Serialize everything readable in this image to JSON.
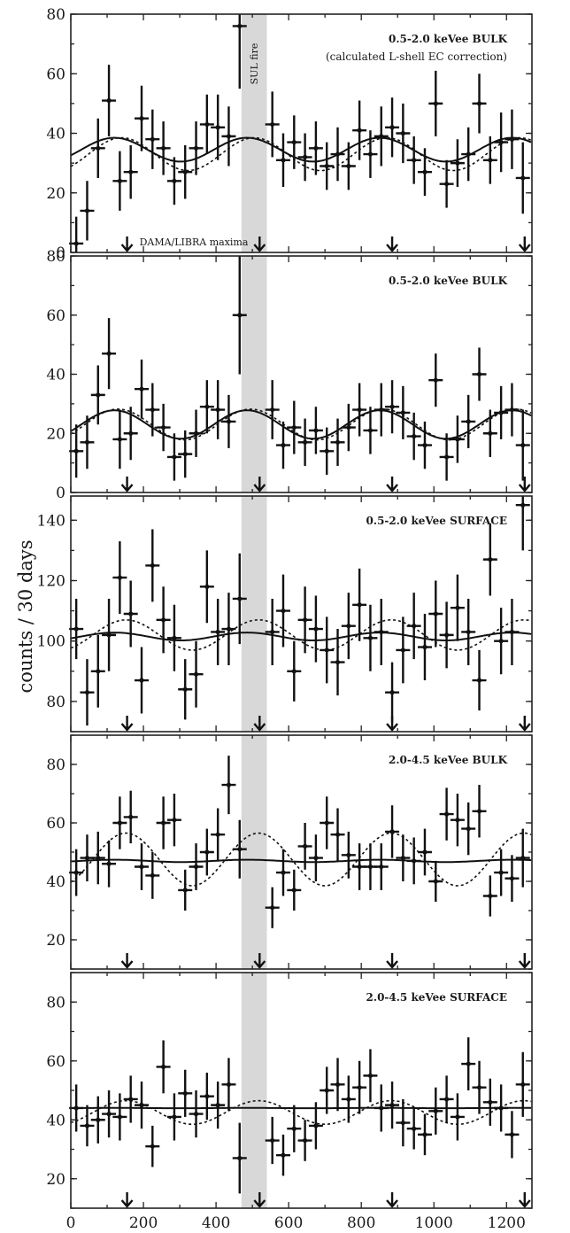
{
  "figure": {
    "ylabel": "counts / 30 days",
    "shared_x_ticks": [
      "0",
      "200",
      "400",
      "600",
      "800",
      "1000",
      "1200"
    ],
    "band_label": "SUL fire",
    "maxima_label": "DAMA/LIBRA maxima"
  },
  "chart_data": [
    {
      "type": "scatter",
      "title": "0.5-2.0 keVee BULK",
      "subtitle": "(calculated L-shell EC correction)",
      "ylim": [
        0,
        80
      ],
      "yticks": [
        0,
        20,
        40,
        60,
        80
      ],
      "xlim": [
        0,
        1270
      ],
      "band": [
        470,
        540
      ],
      "arrows_x": [
        155,
        520,
        885,
        1250
      ],
      "x": [
        15,
        45,
        75,
        105,
        135,
        165,
        195,
        225,
        255,
        285,
        315,
        345,
        375,
        405,
        435,
        465,
        555,
        585,
        615,
        645,
        675,
        705,
        735,
        765,
        795,
        825,
        855,
        885,
        915,
        945,
        975,
        1005,
        1035,
        1065,
        1095,
        1125,
        1155,
        1185,
        1215,
        1245
      ],
      "y": [
        3,
        14,
        35,
        51,
        24,
        27,
        45,
        38,
        35,
        24,
        27,
        35,
        43,
        42,
        39,
        76,
        43,
        31,
        37,
        32,
        35,
        29,
        33,
        29,
        41,
        33,
        39,
        42,
        40,
        31,
        27,
        50,
        23,
        30,
        33,
        50,
        31,
        37,
        38,
        25
      ],
      "yerr": [
        9,
        10,
        10,
        12,
        10,
        9,
        11,
        10,
        9,
        8,
        9,
        9,
        10,
        11,
        10,
        21,
        11,
        9,
        9,
        8,
        9,
        8,
        9,
        8,
        10,
        8,
        10,
        10,
        10,
        8,
        8,
        11,
        8,
        8,
        9,
        10,
        8,
        10,
        10,
        12
      ],
      "fit_solid": {
        "mean": 34.5,
        "amplitude": 4,
        "phase_day": 120
      },
      "fit_dashed": {
        "mean": 33,
        "amplitude": 5.5,
        "phase_day": 140
      }
    },
    {
      "type": "scatter",
      "title": "0.5-2.0 keVee BULK",
      "ylim": [
        0,
        80
      ],
      "yticks": [
        0,
        20,
        40,
        60,
        80
      ],
      "xlim": [
        0,
        1270
      ],
      "band": [
        470,
        540
      ],
      "arrows_x": [
        155,
        520,
        885,
        1250
      ],
      "x": [
        15,
        45,
        75,
        105,
        135,
        165,
        195,
        225,
        255,
        285,
        315,
        345,
        375,
        405,
        435,
        465,
        555,
        585,
        615,
        645,
        675,
        705,
        735,
        765,
        795,
        825,
        855,
        885,
        915,
        945,
        975,
        1005,
        1035,
        1065,
        1095,
        1125,
        1155,
        1185,
        1215,
        1245
      ],
      "y": [
        14,
        17,
        33,
        47,
        18,
        20,
        35,
        28,
        22,
        12,
        13,
        20,
        29,
        28,
        24,
        60,
        28,
        16,
        22,
        17,
        21,
        14,
        17,
        22,
        28,
        21,
        28,
        29,
        27,
        19,
        16,
        38,
        12,
        18,
        24,
        40,
        20,
        27,
        28,
        16
      ],
      "yerr": [
        9,
        9,
        10,
        12,
        10,
        9,
        10,
        9,
        8,
        8,
        8,
        8,
        9,
        10,
        9,
        20,
        10,
        8,
        9,
        8,
        8,
        8,
        8,
        8,
        9,
        8,
        9,
        9,
        9,
        8,
        8,
        9,
        8,
        8,
        9,
        9,
        8,
        9,
        9,
        12
      ],
      "fit_solid": {
        "mean": 23,
        "amplitude": 4.8,
        "phase_day": 120
      },
      "fit_dashed": {
        "mean": 23,
        "amplitude": 5.2,
        "phase_day": 130
      }
    },
    {
      "type": "scatter",
      "title": "0.5-2.0 keVee SURFACE",
      "ylim": [
        70,
        148
      ],
      "yticks": [
        80,
        100,
        120,
        140
      ],
      "xlim": [
        0,
        1270
      ],
      "band": [
        470,
        540
      ],
      "arrows_x": [
        155,
        520,
        885,
        1250
      ],
      "x": [
        15,
        45,
        75,
        105,
        135,
        165,
        195,
        225,
        255,
        285,
        315,
        345,
        375,
        405,
        435,
        465,
        555,
        585,
        615,
        645,
        675,
        705,
        735,
        765,
        795,
        825,
        855,
        885,
        915,
        945,
        975,
        1005,
        1035,
        1065,
        1095,
        1125,
        1155,
        1185,
        1215,
        1245
      ],
      "y": [
        104,
        83,
        90,
        102,
        121,
        109,
        87,
        125,
        107,
        101,
        84,
        89,
        118,
        103,
        104,
        114,
        103,
        110,
        90,
        107,
        104,
        97,
        93,
        105,
        112,
        101,
        103,
        83,
        97,
        105,
        98,
        109,
        102,
        111,
        103,
        87,
        127,
        100,
        103,
        145
      ],
      "yerr": [
        10,
        11,
        12,
        12,
        12,
        11,
        11,
        12,
        11,
        11,
        10,
        11,
        12,
        11,
        12,
        15,
        11,
        12,
        10,
        11,
        11,
        11,
        11,
        11,
        12,
        11,
        11,
        10,
        11,
        11,
        11,
        11,
        11,
        11,
        11,
        10,
        12,
        11,
        11,
        15
      ],
      "fit_solid": {
        "mean": 101.5,
        "amplitude": 1.3,
        "phase_day": 120
      },
      "fit_dashed": {
        "mean": 102,
        "amplitude": 5,
        "phase_day": 152
      }
    },
    {
      "type": "scatter",
      "title": "2.0-4.5 keVee BULK",
      "ylim": [
        10,
        90
      ],
      "yticks": [
        20,
        40,
        60,
        80
      ],
      "xlim": [
        0,
        1270
      ],
      "band": [
        470,
        540
      ],
      "arrows_x": [
        155,
        520,
        885,
        1250
      ],
      "x": [
        15,
        45,
        75,
        105,
        135,
        165,
        195,
        225,
        255,
        285,
        315,
        345,
        375,
        405,
        435,
        465,
        555,
        585,
        615,
        645,
        675,
        705,
        735,
        765,
        795,
        825,
        855,
        885,
        915,
        945,
        975,
        1005,
        1035,
        1065,
        1095,
        1125,
        1155,
        1185,
        1215,
        1245
      ],
      "y": [
        43,
        48,
        48,
        46,
        60,
        62,
        45,
        42,
        60,
        61,
        37,
        45,
        50,
        56,
        73,
        51,
        31,
        43,
        37,
        52,
        48,
        60,
        56,
        49,
        45,
        45,
        45,
        57,
        48,
        47,
        50,
        40,
        63,
        61,
        58,
        64,
        35,
        43,
        41,
        48
      ],
      "yerr": [
        8,
        8,
        9,
        8,
        9,
        9,
        8,
        8,
        9,
        9,
        7,
        8,
        8,
        9,
        10,
        10,
        7,
        8,
        7,
        8,
        8,
        9,
        9,
        8,
        8,
        8,
        8,
        9,
        8,
        8,
        8,
        7,
        9,
        9,
        9,
        9,
        7,
        8,
        8,
        10
      ],
      "fit_solid": {
        "mean": 47,
        "amplitude": 0.4,
        "phase_day": 120
      },
      "fit_dashed": {
        "mean": 47.5,
        "amplitude": 9,
        "phase_day": 152
      }
    },
    {
      "type": "scatter",
      "title": "2.0-4.5 keVee SURFACE",
      "ylim": [
        10,
        90
      ],
      "yticks": [
        20,
        40,
        60,
        80
      ],
      "xlim": [
        0,
        1270
      ],
      "band": [
        470,
        540
      ],
      "arrows_x": [
        155,
        520,
        885,
        1250
      ],
      "x": [
        15,
        45,
        75,
        105,
        135,
        165,
        195,
        225,
        255,
        285,
        315,
        345,
        375,
        405,
        435,
        465,
        555,
        585,
        615,
        645,
        675,
        705,
        735,
        765,
        795,
        825,
        855,
        885,
        915,
        945,
        975,
        1005,
        1035,
        1065,
        1095,
        1125,
        1155,
        1185,
        1215,
        1245
      ],
      "y": [
        44,
        38,
        40,
        42,
        41,
        47,
        45,
        31,
        58,
        41,
        49,
        42,
        48,
        45,
        52,
        27,
        33,
        28,
        37,
        33,
        38,
        50,
        52,
        47,
        51,
        55,
        44,
        45,
        39,
        37,
        35,
        43,
        47,
        41,
        59,
        51,
        46,
        44,
        35,
        52
      ],
      "yerr": [
        8,
        7,
        8,
        8,
        8,
        8,
        8,
        7,
        9,
        8,
        8,
        8,
        8,
        8,
        9,
        12,
        8,
        7,
        8,
        7,
        8,
        8,
        9,
        8,
        9,
        9,
        8,
        8,
        8,
        7,
        7,
        8,
        8,
        8,
        9,
        9,
        8,
        8,
        8,
        11
      ],
      "fit_solid": {
        "mean": 44,
        "amplitude": 0.05,
        "phase_day": 120
      },
      "fit_dashed": {
        "mean": 42.5,
        "amplitude": 4,
        "phase_day": 152
      }
    }
  ]
}
